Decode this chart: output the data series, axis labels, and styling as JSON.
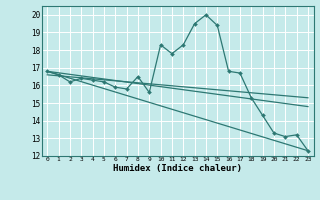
{
  "title": "",
  "xlabel": "Humidex (Indice chaleur)",
  "ylabel": "",
  "xlim": [
    -0.5,
    23.5
  ],
  "ylim": [
    12,
    20.5
  ],
  "xticks": [
    0,
    1,
    2,
    3,
    4,
    5,
    6,
    7,
    8,
    9,
    10,
    11,
    12,
    13,
    14,
    15,
    16,
    17,
    18,
    19,
    20,
    21,
    22,
    23
  ],
  "yticks": [
    12,
    13,
    14,
    15,
    16,
    17,
    18,
    19,
    20
  ],
  "bg_color": "#c5eaea",
  "grid_color": "#ffffff",
  "line_color": "#2d7873",
  "series1_x": [
    0,
    1,
    2,
    3,
    4,
    5,
    6,
    7,
    8,
    9,
    10,
    11,
    12,
    13,
    14,
    15,
    16,
    17,
    18,
    19,
    20,
    21,
    22,
    23
  ],
  "series1_y": [
    16.8,
    16.6,
    16.2,
    16.4,
    16.3,
    16.2,
    15.9,
    15.8,
    16.5,
    15.6,
    18.3,
    17.8,
    18.3,
    19.5,
    20.0,
    19.4,
    16.8,
    16.7,
    15.3,
    14.3,
    13.3,
    13.1,
    13.2,
    12.3
  ],
  "line1_x": [
    0,
    23
  ],
  "line1_y": [
    16.8,
    12.3
  ],
  "line2_x": [
    0,
    23
  ],
  "line2_y": [
    16.6,
    15.3
  ],
  "line3_x": [
    0,
    23
  ],
  "line3_y": [
    16.8,
    14.8
  ]
}
